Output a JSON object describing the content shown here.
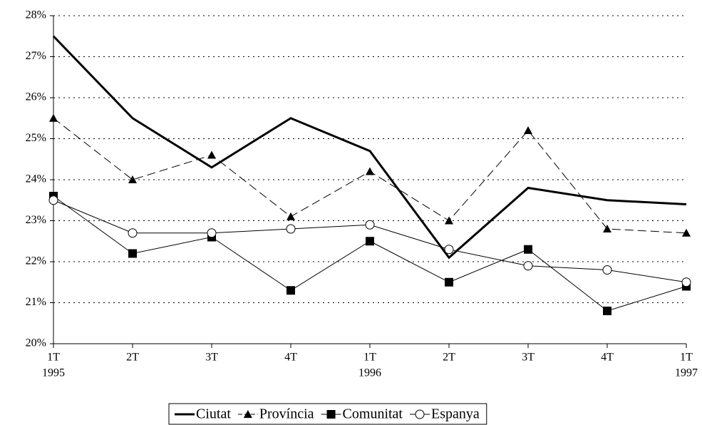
{
  "chart_data": {
    "type": "line",
    "categories": [
      "1T",
      "2T",
      "3T",
      "4T",
      "1T",
      "2T",
      "3T",
      "4T",
      "1T"
    ],
    "years": [
      "1995",
      null,
      null,
      null,
      "1996",
      null,
      null,
      null,
      "1997"
    ],
    "series": [
      {
        "name": "Ciutat",
        "color": "#000000",
        "line_style": "solid",
        "line_width": 3,
        "marker": "none",
        "values": [
          27.5,
          25.5,
          24.3,
          25.5,
          24.7,
          22.1,
          23.8,
          23.5,
          23.4
        ]
      },
      {
        "name": "Província",
        "color": "#000000",
        "line_style": "dashed",
        "line_width": 1,
        "marker": "triangle",
        "values": [
          25.5,
          24.0,
          24.6,
          23.1,
          24.2,
          23.0,
          25.2,
          22.8,
          22.7
        ]
      },
      {
        "name": "Comunitat",
        "color": "#000000",
        "line_style": "solid",
        "line_width": 1,
        "marker": "square",
        "values": [
          23.6,
          22.2,
          22.6,
          21.3,
          22.5,
          21.5,
          22.3,
          20.8,
          21.4
        ]
      },
      {
        "name": "Espanya",
        "color": "#000000",
        "line_style": "solid",
        "line_width": 1,
        "marker": "circle",
        "values": [
          23.5,
          22.7,
          22.7,
          22.8,
          22.9,
          22.3,
          21.9,
          21.8,
          21.5
        ]
      }
    ],
    "ylim": [
      20,
      28
    ],
    "yticks": [
      {
        "value": 20,
        "label": "20%"
      },
      {
        "value": 21,
        "label": "21%"
      },
      {
        "value": 22,
        "label": "22%"
      },
      {
        "value": 23,
        "label": "23%"
      },
      {
        "value": 24,
        "label": "24%"
      },
      {
        "value": 25,
        "label": "25%"
      },
      {
        "value": 26,
        "label": "26%"
      },
      {
        "value": 27,
        "label": "27%"
      },
      {
        "value": 28,
        "label": "28%"
      }
    ],
    "grid": true,
    "legend": "bottom"
  }
}
